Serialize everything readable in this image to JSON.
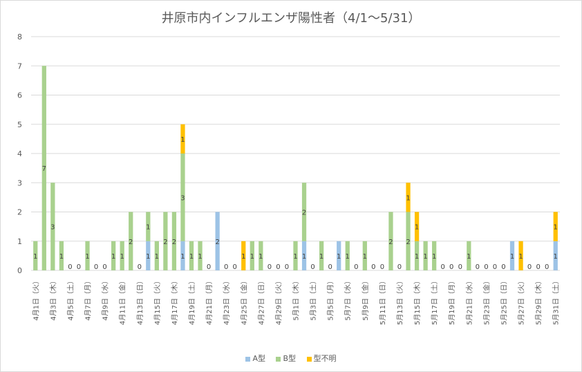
{
  "chart_data": {
    "type": "bar",
    "stacked": true,
    "title": "井原市内インフルエンザ陽性者（4/1～5/31）",
    "ylim": [
      0,
      8
    ],
    "yticks": [
      "0",
      "1",
      "2",
      "3",
      "4",
      "5",
      "6",
      "7",
      "8"
    ],
    "grid": true,
    "legend_position": "bottom",
    "categories": [
      "4月1日（火）",
      "4月2日（水）",
      "4月3日（木）",
      "4月4日（金）",
      "4月5日（土）",
      "4月6日（日）",
      "4月7日（月）",
      "4月8日（火）",
      "4月9日（水）",
      "4月10日（木）",
      "4月11日（金）",
      "4月12日（土）",
      "4月13日（日）",
      "4月14日（月）",
      "4月15日（火）",
      "4月16日（水）",
      "4月17日（木）",
      "4月18日（金）",
      "4月19日（土）",
      "4月20日（日）",
      "4月21日（月）",
      "4月22日（火）",
      "4月23日（水）",
      "4月24日（木）",
      "4月25日（金）",
      "4月26日（土）",
      "4月27日（日）",
      "4月28日（月）",
      "4月29日（火）",
      "4月30日（水）",
      "5月1日（木）",
      "5月2日（金）",
      "5月3日（土）",
      "5月4日（日）",
      "5月5日（月）",
      "5月6日（火）",
      "5月7日（水）",
      "5月8日（木）",
      "5月9日（金）",
      "5月10日（土）",
      "5月11日（日）",
      "5月12日（月）",
      "5月13日（火）",
      "5月14日（水）",
      "5月15日（木）",
      "5月16日（金）",
      "5月17日（土）",
      "5月18日（日）",
      "5月19日（月）",
      "5月20日（火）",
      "5月21日（水）",
      "5月22日（木）",
      "5月23日（金）",
      "5月24日（土）",
      "5月25日（日）",
      "5月26日（月）",
      "5月27日（火）",
      "5月28日（水）",
      "5月29日（木）",
      "5月30日（金）",
      "5月31日（土）"
    ],
    "series": [
      {
        "name": "A型",
        "color": "#9dc3e6",
        "values": [
          0,
          0,
          0,
          0,
          0,
          0,
          0,
          0,
          0,
          0,
          0,
          0,
          0,
          1,
          0,
          0,
          0,
          1,
          0,
          0,
          0,
          2,
          0,
          0,
          0,
          0,
          0,
          0,
          0,
          0,
          0,
          1,
          0,
          0,
          0,
          1,
          0,
          0,
          0,
          0,
          0,
          0,
          0,
          0,
          0,
          0,
          0,
          0,
          0,
          0,
          0,
          0,
          0,
          0,
          0,
          1,
          0,
          0,
          0,
          0,
          1
        ]
      },
      {
        "name": "B型",
        "color": "#a9d18e",
        "values": [
          1,
          7,
          3,
          1,
          0,
          0,
          1,
          0,
          0,
          1,
          1,
          2,
          0,
          1,
          1,
          2,
          2,
          3,
          1,
          1,
          0,
          0,
          0,
          0,
          0,
          1,
          1,
          0,
          0,
          0,
          1,
          2,
          0,
          1,
          0,
          0,
          1,
          0,
          1,
          0,
          0,
          2,
          0,
          2,
          1,
          1,
          1,
          0,
          0,
          0,
          1,
          0,
          0,
          0,
          0,
          0,
          0,
          0,
          0,
          0,
          0
        ]
      },
      {
        "name": "型不明",
        "color": "#ffc000",
        "values": [
          0,
          0,
          0,
          0,
          0,
          0,
          0,
          0,
          0,
          0,
          0,
          0,
          0,
          0,
          0,
          0,
          0,
          1,
          0,
          0,
          0,
          0,
          0,
          0,
          1,
          0,
          0,
          0,
          0,
          0,
          0,
          0,
          0,
          0,
          0,
          0,
          0,
          0,
          0,
          0,
          0,
          0,
          0,
          1,
          1,
          0,
          0,
          0,
          0,
          0,
          0,
          0,
          0,
          0,
          0,
          0,
          1,
          0,
          0,
          0,
          1
        ]
      }
    ]
  }
}
